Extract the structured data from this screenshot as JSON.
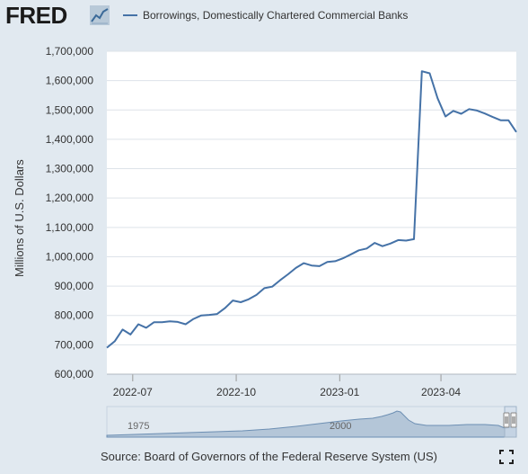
{
  "header": {
    "logo_text": "FRED",
    "logo_icon": "chart-line-icon"
  },
  "legend": {
    "series_label": "Borrowings, Domestically Chartered Commercial Banks",
    "color": "#4572a7"
  },
  "source": "Source: Board of Governors of the Federal Reserve System (US)",
  "navigator": {
    "labels": [
      "1975",
      "2000"
    ]
  },
  "chart_data": {
    "type": "line",
    "title": "",
    "xlabel": "",
    "ylabel": "Millions of U.S. Dollars",
    "ylim": [
      600000,
      1700000
    ],
    "y_ticks": [
      600000,
      700000,
      800000,
      900000,
      1000000,
      1100000,
      1200000,
      1300000,
      1400000,
      1500000,
      1600000,
      1700000
    ],
    "y_tick_labels": [
      "600,000",
      "700,000",
      "800,000",
      "900,000",
      "1,000,000",
      "1,100,000",
      "1,200,000",
      "1,300,000",
      "1,400,000",
      "1,500,000",
      "1,600,000",
      "1,700,000"
    ],
    "x_tick_labels": [
      "2022-07",
      "2022-10",
      "2023-01",
      "2023-04"
    ],
    "x_tick_dates": [
      "2022-07-01",
      "2022-10-01",
      "2023-01-01",
      "2023-04-01"
    ],
    "xlim": [
      "2022-06-08",
      "2023-06-07"
    ],
    "grid": true,
    "series": [
      {
        "name": "Borrowings, Domestically Chartered Commercial Banks",
        "color": "#4572a7",
        "x": [
          "2022-06-08",
          "2022-06-15",
          "2022-06-22",
          "2022-06-29",
          "2022-07-06",
          "2022-07-13",
          "2022-07-20",
          "2022-07-27",
          "2022-08-03",
          "2022-08-10",
          "2022-08-17",
          "2022-08-24",
          "2022-08-31",
          "2022-09-07",
          "2022-09-14",
          "2022-09-21",
          "2022-09-28",
          "2022-10-05",
          "2022-10-12",
          "2022-10-19",
          "2022-10-26",
          "2022-11-02",
          "2022-11-09",
          "2022-11-16",
          "2022-11-23",
          "2022-11-30",
          "2022-12-07",
          "2022-12-14",
          "2022-12-21",
          "2022-12-28",
          "2023-01-04",
          "2023-01-11",
          "2023-01-18",
          "2023-01-25",
          "2023-02-01",
          "2023-02-08",
          "2023-02-15",
          "2023-02-22",
          "2023-03-01",
          "2023-03-08",
          "2023-03-15",
          "2023-03-22",
          "2023-03-29",
          "2023-04-05",
          "2023-04-12",
          "2023-04-19",
          "2023-04-26",
          "2023-05-03",
          "2023-05-10",
          "2023-05-17",
          "2023-05-24",
          "2023-05-31",
          "2023-06-07"
        ],
        "y": [
          690000,
          712000,
          752000,
          735000,
          770000,
          758000,
          777000,
          777000,
          780000,
          778000,
          770000,
          788000,
          800000,
          802000,
          805000,
          825000,
          851000,
          845000,
          855000,
          870000,
          893000,
          898000,
          920000,
          940000,
          962000,
          978000,
          970000,
          968000,
          982000,
          985000,
          995000,
          1008000,
          1022000,
          1028000,
          1047000,
          1036000,
          1045000,
          1057000,
          1055000,
          1060000,
          1632000,
          1625000,
          1540000,
          1478000,
          1497000,
          1487000,
          1503000,
          1498000,
          1488000,
          1476000,
          1465000,
          1465000,
          1425000
        ]
      }
    ]
  }
}
